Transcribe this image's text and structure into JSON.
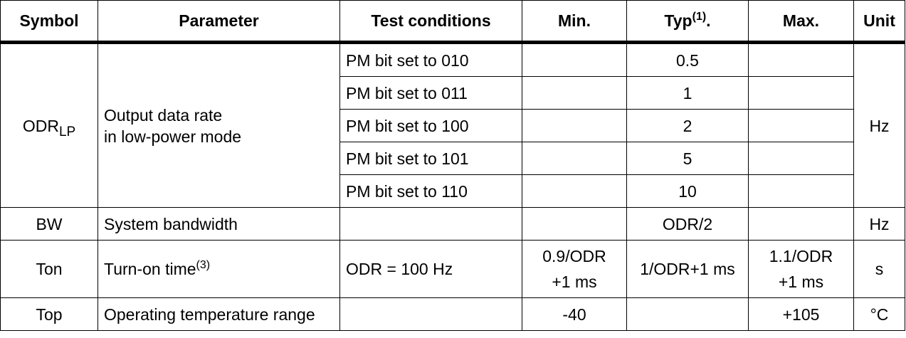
{
  "headers": {
    "symbol": "Symbol",
    "parameter": "Parameter",
    "test_conditions": "Test conditions",
    "min": "Min.",
    "typ": "Typ",
    "typ_sup": "(1)",
    "typ_suffix": ".",
    "max": "Max.",
    "unit": "Unit"
  },
  "odr_lp": {
    "symbol_main": "ODR",
    "symbol_sub": "LP",
    "parameter_line1": "Output data rate",
    "parameter_line2": "in low-power mode",
    "unit": "Hz",
    "rows": [
      {
        "condition": "PM bit set to 010",
        "typ": "0.5"
      },
      {
        "condition": "PM bit set to 011",
        "typ": "1"
      },
      {
        "condition": "PM bit set to 100",
        "typ": "2"
      },
      {
        "condition": "PM bit set to 101",
        "typ": "5"
      },
      {
        "condition": "PM bit set to 110",
        "typ": "10"
      }
    ]
  },
  "bw": {
    "symbol": "BW",
    "parameter": "System bandwidth",
    "typ": "ODR/2",
    "unit": "Hz"
  },
  "ton": {
    "symbol": "Ton",
    "parameter": "Turn-on time",
    "parameter_sup": "(3)",
    "condition": "ODR = 100 Hz",
    "min_line1": "0.9/ODR",
    "min_line2": "+1 ms",
    "typ": "1/ODR+1 ms",
    "max_line1": "1.1/ODR",
    "max_line2": "+1 ms",
    "unit": "s"
  },
  "top": {
    "symbol": "Top",
    "parameter": "Operating temperature range",
    "min": "-40",
    "max": "+105",
    "unit": "°C"
  }
}
